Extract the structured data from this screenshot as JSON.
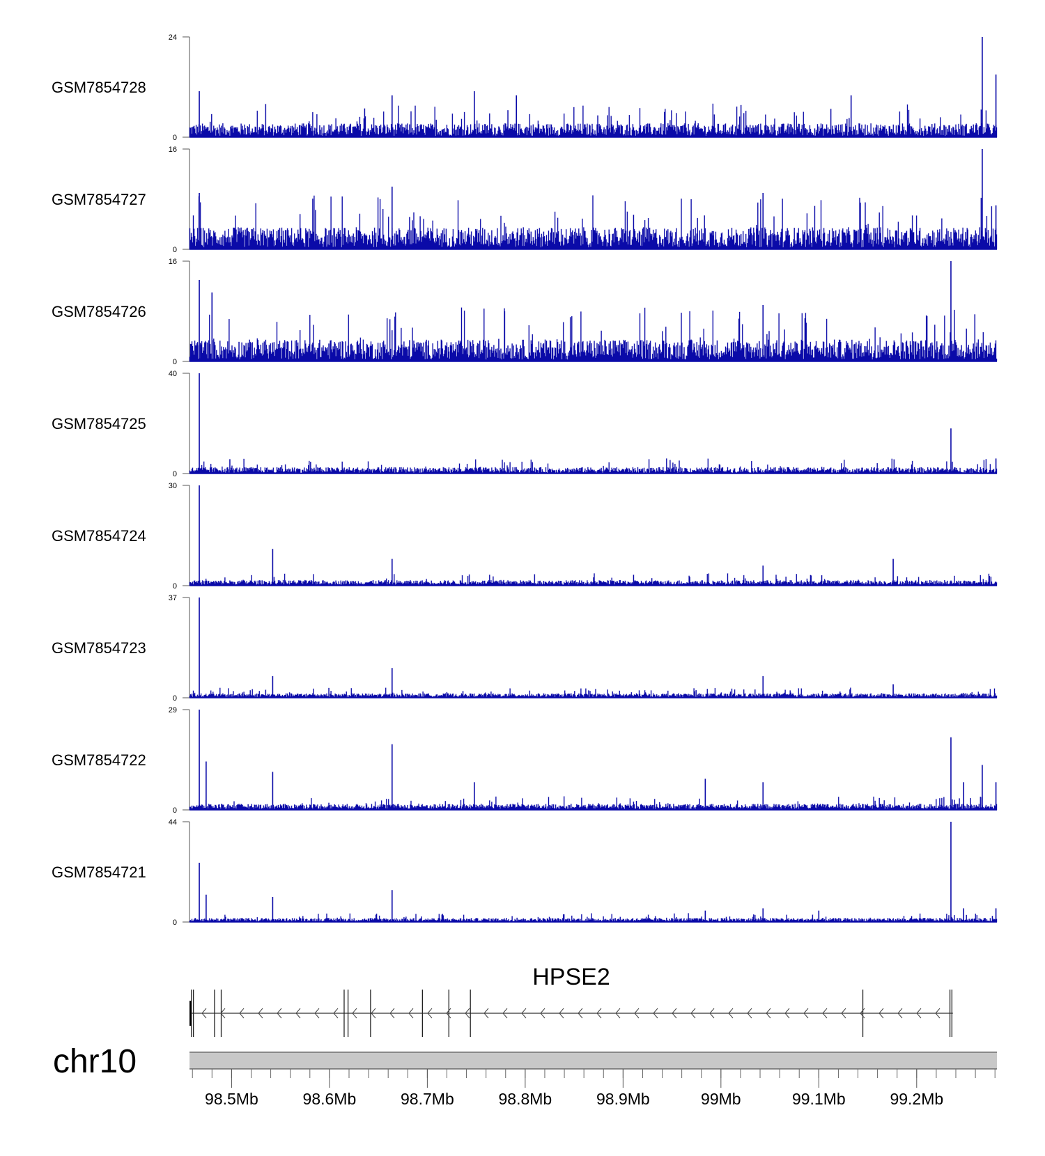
{
  "chart_data": {
    "type": "area",
    "title": "",
    "xlabel": "",
    "ylabel": "",
    "chromosome": "chr10",
    "xlim_mb": [
      98.457,
      99.282
    ],
    "x_ticks": [
      "98.5Mb",
      "98.6Mb",
      "98.7Mb",
      "98.8Mb",
      "98.9Mb",
      "99Mb",
      "99.1Mb",
      "99.2Mb"
    ],
    "x_tick_values_mb": [
      98.5,
      98.6,
      98.7,
      98.8,
      98.9,
      99.0,
      99.1,
      99.2
    ],
    "color": "#0a0aa8",
    "tracks": [
      {
        "name": "GSM7854728",
        "ymax": 24,
        "ymin_label": "0",
        "ymax_label": "24",
        "baseline": 3,
        "peaks": [
          [
            98.467,
            11
          ],
          [
            98.664,
            10
          ],
          [
            98.748,
            11
          ],
          [
            98.791,
            10
          ],
          [
            99.133,
            10
          ],
          [
            99.267,
            24
          ],
          [
            99.281,
            15
          ]
        ]
      },
      {
        "name": "GSM7854727",
        "ymax": 16,
        "ymin_label": "0",
        "ymax_label": "16",
        "baseline": 3.2,
        "peaks": [
          [
            98.467,
            9
          ],
          [
            98.664,
            10
          ],
          [
            99.043,
            9
          ],
          [
            99.267,
            16
          ],
          [
            99.281,
            7
          ]
        ]
      },
      {
        "name": "GSM7854726",
        "ymax": 16,
        "ymin_label": "0",
        "ymax_label": "16",
        "baseline": 3.2,
        "peaks": [
          [
            98.467,
            13
          ],
          [
            98.48,
            11
          ],
          [
            98.779,
            8
          ],
          [
            99.043,
            9
          ],
          [
            99.235,
            16
          ]
        ]
      },
      {
        "name": "GSM7854725",
        "ymax": 40,
        "ymin_label": "0",
        "ymax_label": "40",
        "baseline": 2.2,
        "peaks": [
          [
            98.467,
            40
          ],
          [
            99.235,
            18
          ],
          [
            99.281,
            6
          ]
        ]
      },
      {
        "name": "GSM7854724",
        "ymax": 30,
        "ymin_label": "0",
        "ymax_label": "30",
        "baseline": 1.3,
        "peaks": [
          [
            98.467,
            30
          ],
          [
            98.542,
            11
          ],
          [
            98.664,
            8
          ],
          [
            99.043,
            6
          ],
          [
            99.176,
            8
          ]
        ]
      },
      {
        "name": "GSM7854723",
        "ymax": 37,
        "ymin_label": "0",
        "ymax_label": "37",
        "baseline": 1.3,
        "peaks": [
          [
            98.467,
            37
          ],
          [
            98.542,
            8
          ],
          [
            98.664,
            11
          ],
          [
            99.043,
            8
          ],
          [
            99.176,
            5
          ]
        ]
      },
      {
        "name": "GSM7854722",
        "ymax": 29,
        "ymin_label": "0",
        "ymax_label": "29",
        "baseline": 1.4,
        "peaks": [
          [
            98.467,
            29
          ],
          [
            98.474,
            14
          ],
          [
            98.542,
            11
          ],
          [
            98.664,
            19
          ],
          [
            98.748,
            8
          ],
          [
            98.984,
            9
          ],
          [
            99.043,
            8
          ],
          [
            99.235,
            21
          ],
          [
            99.248,
            8
          ],
          [
            99.267,
            13
          ],
          [
            99.281,
            8
          ]
        ]
      },
      {
        "name": "GSM7854721",
        "ymax": 44,
        "ymin_label": "0",
        "ymax_label": "44",
        "baseline": 1.4,
        "peaks": [
          [
            98.467,
            26
          ],
          [
            98.474,
            12
          ],
          [
            98.542,
            11
          ],
          [
            98.664,
            14
          ],
          [
            98.984,
            5
          ],
          [
            99.043,
            6
          ],
          [
            99.1,
            5
          ],
          [
            99.235,
            44
          ],
          [
            99.248,
            6
          ],
          [
            99.281,
            6
          ]
        ]
      }
    ],
    "gene": {
      "name": "HPSE2",
      "strand": "-",
      "start_mb": 98.457,
      "end_mb": 99.237,
      "exons_mb": [
        98.459,
        98.461,
        98.4826,
        98.4894,
        98.615,
        98.619,
        98.642,
        98.695,
        98.722,
        98.744,
        99.145,
        99.234,
        99.236
      ]
    }
  }
}
